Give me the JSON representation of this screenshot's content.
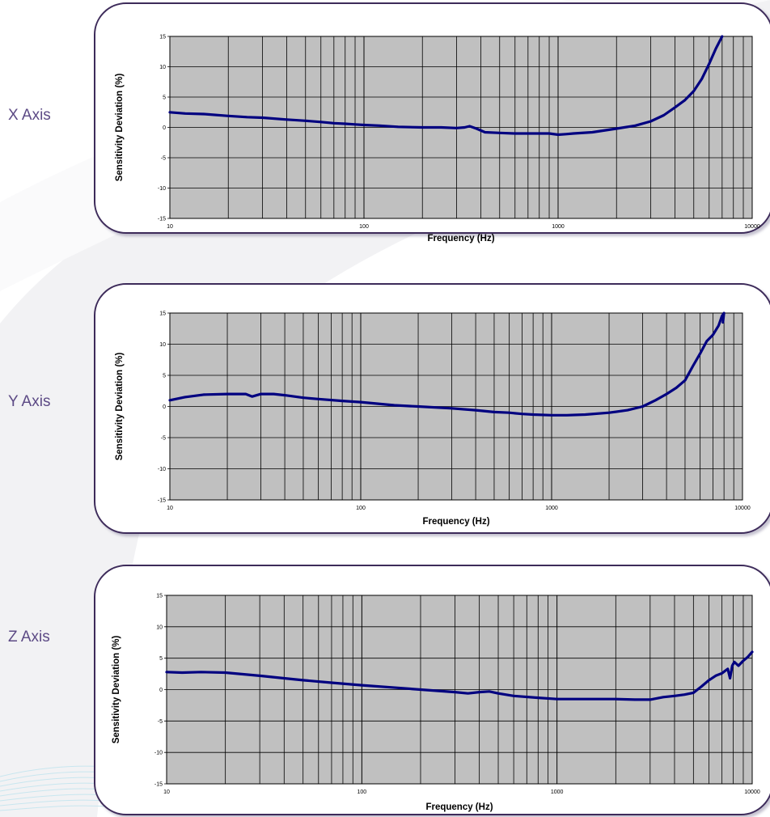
{
  "colors": {
    "plot_bg": "#c0c0c0",
    "grid": "#000000",
    "line": "#000080",
    "frame": "#3d2b5a",
    "axis_name": "#5c4a85"
  },
  "labels": {
    "x_axis_name": "X Axis",
    "y_axis_name": "Y Axis",
    "z_axis_name": "Z Axis"
  },
  "chart_data": [
    {
      "type": "line",
      "scale": "log-x",
      "xlabel": "Frequency (Hz)",
      "ylabel": "Sensitivity Deviation (%)",
      "xlim": [
        10,
        10000
      ],
      "ylim": [
        -15,
        15
      ],
      "xticks": [
        "10",
        "100",
        "1000",
        "10000"
      ],
      "yticks": [
        "15",
        "10",
        "5",
        "0",
        "-5",
        "-10",
        "-15"
      ],
      "grid": true,
      "series": [
        {
          "x": [
            10,
            12,
            15,
            20,
            25,
            30,
            40,
            50,
            60,
            70,
            80,
            90,
            100,
            120,
            150,
            200,
            250,
            300,
            330,
            350,
            380,
            420,
            500,
            600,
            700,
            800,
            900,
            1000,
            1100,
            1200,
            1500,
            2000,
            2500,
            3000,
            3500,
            4000,
            4500,
            5000,
            5500,
            6000,
            6500,
            7000
          ],
          "y": [
            2.5,
            2.3,
            2.2,
            1.9,
            1.7,
            1.6,
            1.3,
            1.1,
            0.9,
            0.7,
            0.6,
            0.5,
            0.4,
            0.3,
            0.1,
            0.0,
            0.0,
            -0.1,
            0.0,
            0.2,
            -0.2,
            -0.8,
            -0.9,
            -1.0,
            -1.0,
            -1.0,
            -1.0,
            -1.2,
            -1.1,
            -1.0,
            -0.8,
            -0.2,
            0.3,
            1.0,
            2.0,
            3.3,
            4.5,
            6.0,
            8.0,
            10.5,
            13.0,
            15.0
          ]
        }
      ]
    },
    {
      "type": "line",
      "scale": "log-x",
      "xlabel": "Frequency (Hz)",
      "ylabel": "Sensitivity Deviation (%)",
      "xlim": [
        10,
        10000
      ],
      "ylim": [
        -15,
        15
      ],
      "xticks": [
        "10",
        "100",
        "1000",
        "10000"
      ],
      "yticks": [
        "15",
        "10",
        "5",
        "0",
        "-5",
        "-10",
        "-15"
      ],
      "grid": true,
      "series": [
        {
          "x": [
            10,
            12,
            15,
            20,
            25,
            27,
            30,
            35,
            40,
            50,
            60,
            80,
            100,
            150,
            200,
            300,
            400,
            500,
            600,
            700,
            800,
            1000,
            1200,
            1500,
            2000,
            2500,
            3000,
            3500,
            4000,
            4500,
            5000,
            5500,
            6000,
            6500,
            7000,
            7500,
            7800,
            8000,
            7900
          ],
          "y": [
            1.0,
            1.5,
            1.9,
            2.0,
            2.0,
            1.6,
            2.0,
            2.0,
            1.8,
            1.4,
            1.2,
            0.9,
            0.7,
            0.2,
            0.0,
            -0.3,
            -0.6,
            -0.9,
            -1.0,
            -1.2,
            -1.3,
            -1.4,
            -1.4,
            -1.3,
            -1.0,
            -0.6,
            0.0,
            1.0,
            2.0,
            3.0,
            4.2,
            6.5,
            8.5,
            10.5,
            11.5,
            13.0,
            14.5,
            15.0,
            13.5
          ]
        }
      ]
    },
    {
      "type": "line",
      "scale": "log-x",
      "xlabel": "Frequency (Hz)",
      "ylabel": "Sensitivity Deviation (%)",
      "xlim": [
        10,
        10000
      ],
      "ylim": [
        -15,
        15
      ],
      "xticks": [
        "10",
        "100",
        "1000",
        "10000"
      ],
      "yticks": [
        "15",
        "10",
        "5",
        "0",
        "-5",
        "-10",
        "-15"
      ],
      "grid": true,
      "series": [
        {
          "x": [
            10,
            12,
            15,
            20,
            30,
            40,
            50,
            70,
            100,
            150,
            200,
            300,
            350,
            400,
            450,
            500,
            600,
            800,
            1000,
            1500,
            2000,
            2500,
            3000,
            3500,
            4000,
            4500,
            5000,
            5500,
            6000,
            6500,
            7000,
            7500,
            7700,
            7900,
            8100,
            8500,
            9000,
            9500,
            10000
          ],
          "y": [
            2.8,
            2.7,
            2.8,
            2.7,
            2.2,
            1.8,
            1.5,
            1.1,
            0.7,
            0.3,
            0.0,
            -0.4,
            -0.6,
            -0.4,
            -0.3,
            -0.6,
            -1.0,
            -1.3,
            -1.5,
            -1.5,
            -1.5,
            -1.6,
            -1.6,
            -1.2,
            -1.0,
            -0.8,
            -0.5,
            0.5,
            1.5,
            2.2,
            2.6,
            3.3,
            1.8,
            3.8,
            4.4,
            3.8,
            4.6,
            5.2,
            6.0
          ]
        }
      ]
    }
  ]
}
